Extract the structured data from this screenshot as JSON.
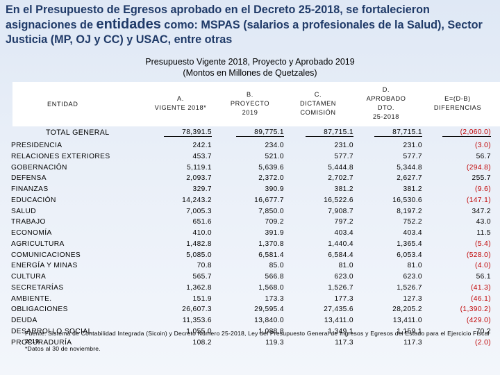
{
  "heading": {
    "part1": "En el Presupuesto de Egresos aprobado en el Decreto 25-2018, se fortalecieron asignaciones de ",
    "emph": "entidades",
    "part2": " como: MSPAS (salarios a profesionales de la Salud), Sector Justicia (MP, OJ y CC) y USAC, entre otras"
  },
  "subtitle": {
    "line1": "Presupuesto Vigente 2018, Proyecto y Aprobado 2019",
    "line2": "(Montos en Millones de Quetzales)"
  },
  "columns": [
    "ENTIDAD",
    "A.\nVIGENTE 2018*",
    "B.\nPROYECTO\n2019",
    "C.\nDICTAMEN\nCOMISIÓN",
    "D.\nAPROBADO\nDTO.\n25-2018",
    "E=(D-B)\nDIFERENCIAS"
  ],
  "total": {
    "label": "TOTAL GENERAL",
    "a": "78,391.5",
    "b": "89,775.1",
    "c": "87,715.1",
    "d": "87,715.1",
    "e": "(2,060.0)"
  },
  "rows": [
    {
      "name": "PRESIDENCIA",
      "a": "242.1",
      "b": "234.0",
      "c": "231.0",
      "d": "231.0",
      "e": "(3.0)"
    },
    {
      "name": "RELACIONES EXTERIORES",
      "a": "453.7",
      "b": "521.0",
      "c": "577.7",
      "d": "577.7",
      "e": "56.7"
    },
    {
      "name": "GOBERNACIÓN",
      "a": "5,119.1",
      "b": "5,639.6",
      "c": "5,444.8",
      "d": "5,344.8",
      "e": "(294.8)"
    },
    {
      "name": "DEFENSA",
      "a": "2,093.7",
      "b": "2,372.0",
      "c": "2,702.7",
      "d": "2,627.7",
      "e": "255.7"
    },
    {
      "name": "FINANZAS",
      "a": "329.7",
      "b": "390.9",
      "c": "381.2",
      "d": "381.2",
      "e": "(9.6)"
    },
    {
      "name": "EDUCACIÓN",
      "a": "14,243.2",
      "b": "16,677.7",
      "c": "16,522.6",
      "d": "16,530.6",
      "e": "(147.1)"
    },
    {
      "name": "SALUD",
      "a": "7,005.3",
      "b": "7,850.0",
      "c": "7,908.7",
      "d": "8,197.2",
      "e": "347.2"
    },
    {
      "name": "TRABAJO",
      "a": "651.6",
      "b": "709.2",
      "c": "797.2",
      "d": "752.2",
      "e": "43.0"
    },
    {
      "name": "ECONOMÍA",
      "a": "410.0",
      "b": "391.9",
      "c": "403.4",
      "d": "403.4",
      "e": "11.5"
    },
    {
      "name": "AGRICULTURA",
      "a": "1,482.8",
      "b": "1,370.8",
      "c": "1,440.4",
      "d": "1,365.4",
      "e": "(5.4)"
    },
    {
      "name": "COMUNICACIONES",
      "a": "5,085.0",
      "b": "6,581.4",
      "c": "6,584.4",
      "d": "6,053.4",
      "e": "(528.0)"
    },
    {
      "name": "ENERGÍA Y MINAS",
      "a": "70.8",
      "b": "85.0",
      "c": "81.0",
      "d": "81.0",
      "e": "(4.0)"
    },
    {
      "name": "CULTURA",
      "a": "565.7",
      "b": "566.8",
      "c": "623.0",
      "d": "623.0",
      "e": "56.1"
    },
    {
      "name": "SECRETARÍAS",
      "a": "1,362.8",
      "b": "1,568.0",
      "c": "1,526.7",
      "d": "1,526.7",
      "e": "(41.3)"
    },
    {
      "name": "AMBIENTE.",
      "a": "151.9",
      "b": "173.3",
      "c": "177.3",
      "d": "127.3",
      "e": "(46.1)"
    },
    {
      "name": "OBLIGACIONES",
      "a": "26,607.3",
      "b": "29,595.4",
      "c": "27,435.6",
      "d": "28,205.2",
      "e": "(1,390.2)"
    },
    {
      "name": "DEUDA",
      "a": "11,353.6",
      "b": "13,840.0",
      "c": "13,411.0",
      "d": "13,411.0",
      "e": "(429.0)"
    },
    {
      "name": "DESARROLLO SOCIAL",
      "a": "1,055.0",
      "b": "1,088.8",
      "c": "1,349.1",
      "d": "1,159.1",
      "e": "70.2"
    },
    {
      "name": "PROCURADURÍA",
      "a": "108.2",
      "b": "119.3",
      "c": "117.3",
      "d": "117.3",
      "e": "(2.0)"
    }
  ],
  "footnote": {
    "line1": "Fuente: Sistema de Contabilidad Integrada (Sicoin) y Decreto Número 25-2018, Ley del Presupuesto General de Ingresos y Egresos del Estado para el Ejercicio Fiscal 2019.",
    "line2": "*Datos al 30 de noviembre."
  },
  "colors": {
    "heading": "#1f3a68",
    "negative": "#c00000",
    "background": "#e9eff8"
  }
}
